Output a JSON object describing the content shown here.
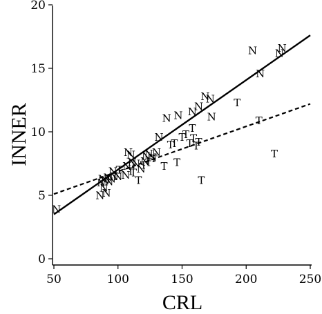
{
  "chart_data": {
    "type": "scatter",
    "xlabel": "CRL",
    "ylabel": "INNER",
    "xlim": [
      50,
      250
    ],
    "ylim": [
      0,
      20
    ],
    "xticks": [
      "50",
      "100",
      "150",
      "200",
      "250"
    ],
    "yticks": [
      "0",
      "5",
      "10",
      "15",
      "20"
    ],
    "grid": false,
    "legend": "none",
    "series": [
      {
        "marker": "N",
        "points": [
          [
            52,
            3.9
          ],
          [
            86,
            5.0
          ],
          [
            87,
            6.0
          ],
          [
            88,
            6.3
          ],
          [
            89,
            5.6
          ],
          [
            90,
            6.2
          ],
          [
            91,
            5.2
          ],
          [
            92,
            6.4
          ],
          [
            93,
            6.1
          ],
          [
            95,
            6.3
          ],
          [
            96,
            6.9
          ],
          [
            97,
            6.5
          ],
          [
            100,
            6.5
          ],
          [
            106,
            6.6
          ],
          [
            107,
            7.3
          ],
          [
            108,
            8.4
          ],
          [
            110,
            8.2
          ],
          [
            111,
            7.6
          ],
          [
            114,
            7.5
          ],
          [
            118,
            7.1
          ],
          [
            121,
            7.7
          ],
          [
            122,
            8.1
          ],
          [
            124,
            8.3
          ],
          [
            127,
            8.0
          ],
          [
            130,
            8.4
          ],
          [
            132,
            9.6
          ],
          [
            138,
            11.1
          ],
          [
            147,
            11.3
          ],
          [
            158,
            11.6
          ],
          [
            163,
            12.0
          ],
          [
            168,
            12.8
          ],
          [
            172,
            12.6
          ],
          [
            173,
            11.2
          ],
          [
            205,
            16.4
          ],
          [
            211,
            14.6
          ],
          [
            226,
            16.2
          ],
          [
            228,
            16.6
          ]
        ]
      },
      {
        "marker": "T",
        "points": [
          [
            101,
            7.0
          ],
          [
            110,
            6.9
          ],
          [
            112,
            6.8
          ],
          [
            116,
            6.2
          ],
          [
            120,
            7.4
          ],
          [
            124,
            7.6
          ],
          [
            128,
            7.9
          ],
          [
            136,
            7.3
          ],
          [
            141,
            9.0
          ],
          [
            144,
            9.1
          ],
          [
            146,
            7.6
          ],
          [
            150,
            9.6
          ],
          [
            153,
            9.8
          ],
          [
            156,
            9.1
          ],
          [
            158,
            10.3
          ],
          [
            159,
            9.5
          ],
          [
            161,
            8.9
          ],
          [
            163,
            9.2
          ],
          [
            165,
            6.2
          ],
          [
            193,
            12.3
          ],
          [
            210,
            10.9
          ],
          [
            222,
            8.3
          ]
        ]
      }
    ],
    "lines": [
      {
        "style": "solid",
        "group": "N",
        "x": [
          50,
          250
        ],
        "y": [
          3.5,
          17.6
        ]
      },
      {
        "style": "dashed",
        "group": "T",
        "x": [
          50,
          250
        ],
        "y": [
          5.1,
          12.2
        ]
      }
    ]
  }
}
